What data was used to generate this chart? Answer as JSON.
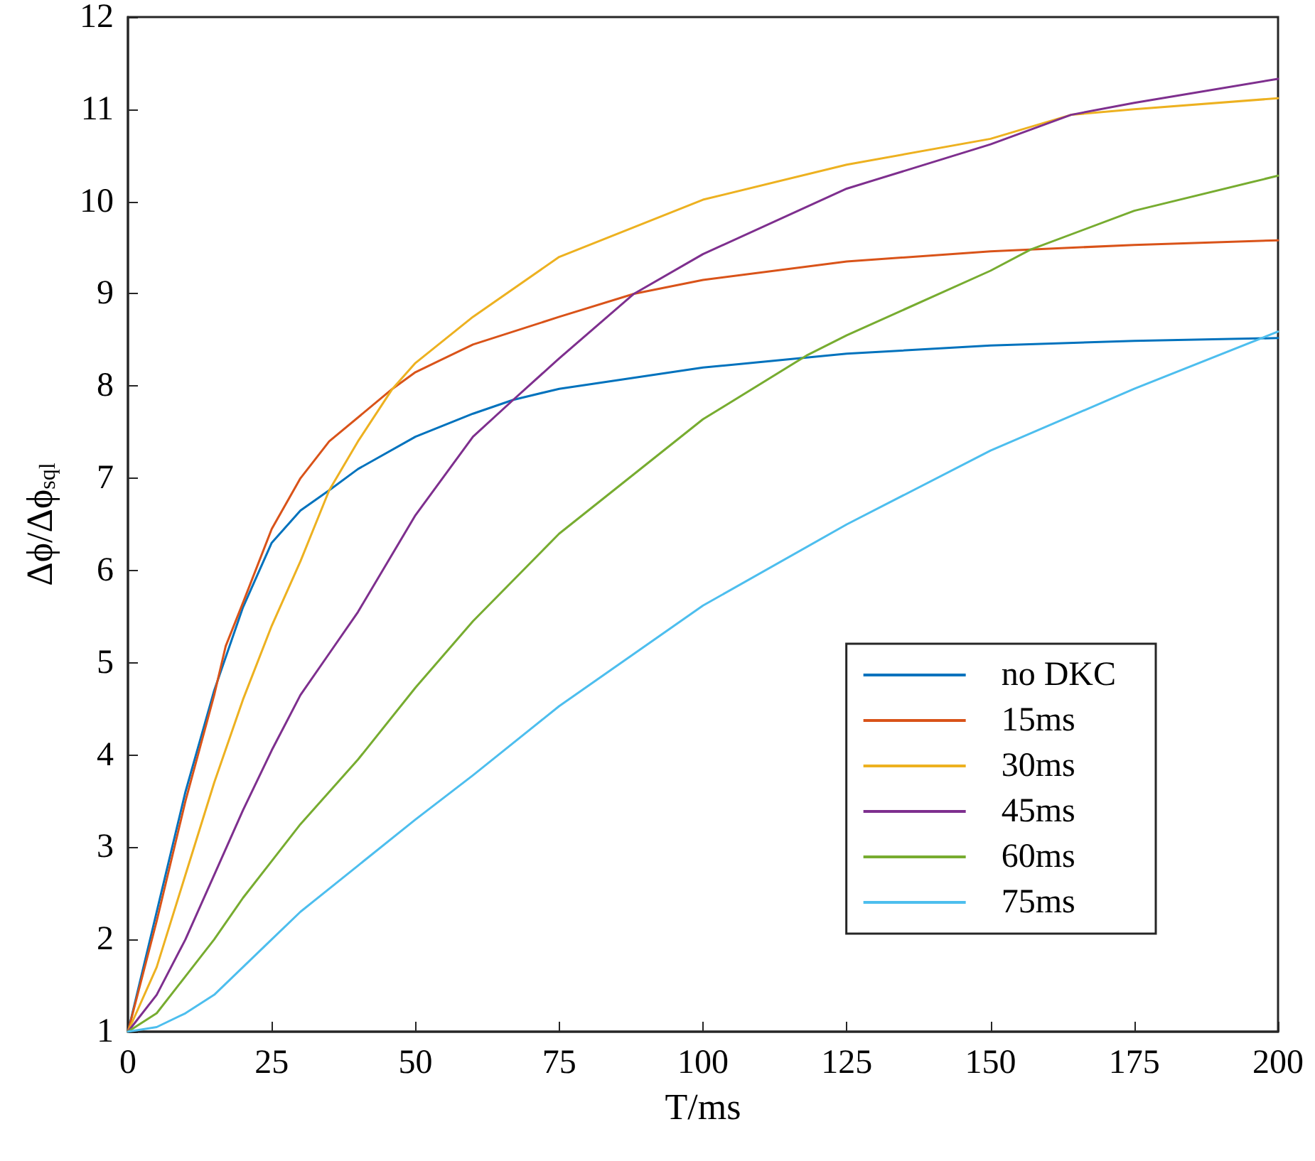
{
  "chart_data": {
    "type": "line",
    "xlabel": "T/ms",
    "ylabel": "Δϕ/Δϕ$_{sql}$",
    "xlim": [
      0,
      200
    ],
    "xticks": [
      0,
      25,
      50,
      75,
      100,
      125,
      150,
      175,
      200
    ],
    "ylim": [
      1,
      12
    ],
    "yticks": [
      1,
      2,
      3,
      4,
      5,
      6,
      7,
      8,
      9,
      10,
      11,
      12
    ],
    "grid": false,
    "legend": "bottom right",
    "marker": "none",
    "line_style": "solid",
    "series": [
      {
        "name": "no DKC",
        "color": "#0072bd",
        "x": [
          0,
          5,
          10,
          15,
          20,
          25,
          30,
          35,
          40,
          50,
          60,
          67,
          75,
          100,
          125,
          150,
          175,
          200
        ],
        "values": [
          1,
          2.3,
          3.6,
          4.7,
          5.6,
          6.3,
          6.65,
          6.87,
          7.1,
          7.45,
          7.7,
          7.85,
          7.97,
          8.2,
          8.35,
          8.44,
          8.49,
          8.52
        ]
      },
      {
        "name": "15ms",
        "color": "#d95319",
        "x": [
          0,
          5,
          10,
          15,
          17,
          20,
          25,
          30,
          35,
          46,
          50,
          60,
          75,
          88,
          100,
          125,
          150,
          175,
          200
        ],
        "values": [
          1,
          2.2,
          3.5,
          4.65,
          5.18,
          5.65,
          6.45,
          7.0,
          7.4,
          7.97,
          8.15,
          8.45,
          8.75,
          9.0,
          9.15,
          9.35,
          9.46,
          9.53,
          9.58
        ]
      },
      {
        "name": "30ms",
        "color": "#edb120",
        "x": [
          0,
          5,
          10,
          15,
          20,
          25,
          30,
          35,
          40,
          46,
          50,
          60,
          75,
          100,
          125,
          150,
          164,
          175,
          200
        ],
        "values": [
          1,
          1.7,
          2.7,
          3.7,
          4.6,
          5.4,
          6.1,
          6.87,
          7.4,
          7.97,
          8.25,
          8.75,
          9.4,
          10.02,
          10.4,
          10.68,
          10.94,
          11.0,
          11.12
        ]
      },
      {
        "name": "45ms",
        "color": "#7e2f8e",
        "x": [
          0,
          5,
          10,
          15,
          20,
          25,
          30,
          35,
          40,
          50,
          60,
          67,
          75,
          88,
          100,
          125,
          150,
          164,
          175,
          200
        ],
        "values": [
          1,
          1.4,
          2.0,
          2.7,
          3.4,
          4.05,
          4.65,
          5.1,
          5.55,
          6.6,
          7.45,
          7.85,
          8.3,
          9.0,
          9.43,
          10.14,
          10.62,
          10.94,
          11.07,
          11.33
        ]
      },
      {
        "name": "60ms",
        "color": "#77ac30",
        "x": [
          0,
          5,
          10,
          15,
          20,
          25,
          30,
          40,
          50,
          60,
          75,
          100,
          118,
          125,
          150,
          157,
          175,
          200
        ],
        "values": [
          1,
          1.2,
          1.6,
          2.0,
          2.45,
          2.85,
          3.25,
          3.95,
          4.73,
          5.45,
          6.4,
          7.64,
          8.33,
          8.55,
          9.25,
          9.48,
          9.9,
          10.28
        ]
      },
      {
        "name": "75ms",
        "color": "#4dbeee",
        "x": [
          0,
          5,
          10,
          15,
          20,
          25,
          30,
          40,
          50,
          60,
          75,
          100,
          125,
          150,
          175,
          200
        ],
        "values": [
          1,
          1.05,
          1.2,
          1.4,
          1.7,
          2.0,
          2.3,
          2.8,
          3.3,
          3.78,
          4.53,
          5.62,
          6.5,
          7.3,
          7.97,
          8.59
        ]
      }
    ]
  }
}
